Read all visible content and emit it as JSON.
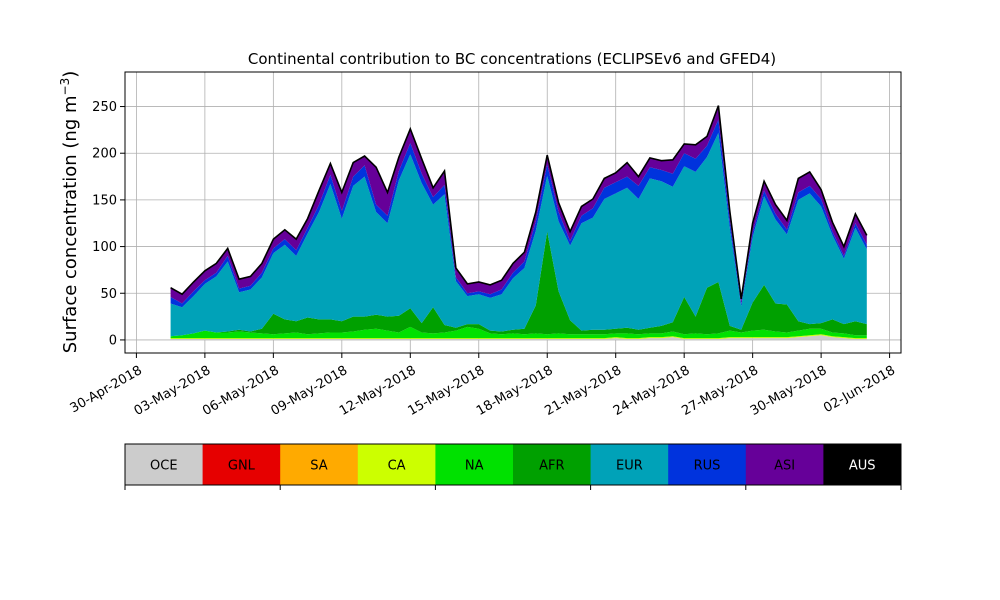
{
  "chart_data": {
    "type": "area",
    "stacked": true,
    "title": "Continental contribution to BC concentrations (ECLIPSEv6 and GFED4)",
    "ylabel": "Surface concentration (ng m",
    "ylabel_superscript": "−3",
    "ylabel_close": ")",
    "xlabel": "",
    "xlim": [
      "2018-04-29T12:00",
      "2018-06-02T12:00"
    ],
    "ylim": [
      -14,
      287
    ],
    "grid": true,
    "x_ticks": [
      "30-Apr-2018",
      "03-May-2018",
      "06-May-2018",
      "09-May-2018",
      "12-May-2018",
      "15-May-2018",
      "18-May-2018",
      "21-May-2018",
      "24-May-2018",
      "27-May-2018",
      "30-May-2018",
      "02-Jun-2018"
    ],
    "y_ticks": [
      "0",
      "50",
      "100",
      "150",
      "200",
      "250"
    ],
    "y_tick_values": [
      0,
      50,
      100,
      150,
      200,
      250
    ],
    "x": [
      "2018-05-01T12:00",
      "2018-05-02T00:00",
      "2018-05-02T12:00",
      "2018-05-03T00:00",
      "2018-05-03T12:00",
      "2018-05-04T00:00",
      "2018-05-04T12:00",
      "2018-05-05T00:00",
      "2018-05-05T12:00",
      "2018-05-06T00:00",
      "2018-05-06T12:00",
      "2018-05-07T00:00",
      "2018-05-07T12:00",
      "2018-05-08T00:00",
      "2018-05-08T12:00",
      "2018-05-09T00:00",
      "2018-05-09T12:00",
      "2018-05-10T00:00",
      "2018-05-10T12:00",
      "2018-05-11T00:00",
      "2018-05-11T12:00",
      "2018-05-12T00:00",
      "2018-05-12T12:00",
      "2018-05-13T00:00",
      "2018-05-13T12:00",
      "2018-05-14T00:00",
      "2018-05-14T12:00",
      "2018-05-15T00:00",
      "2018-05-15T12:00",
      "2018-05-16T00:00",
      "2018-05-16T12:00",
      "2018-05-17T00:00",
      "2018-05-17T12:00",
      "2018-05-18T00:00",
      "2018-05-18T12:00",
      "2018-05-19T00:00",
      "2018-05-19T12:00",
      "2018-05-20T00:00",
      "2018-05-20T12:00",
      "2018-05-21T00:00",
      "2018-05-21T12:00",
      "2018-05-22T00:00",
      "2018-05-22T12:00",
      "2018-05-23T00:00",
      "2018-05-23T12:00",
      "2018-05-24T00:00",
      "2018-05-24T12:00",
      "2018-05-25T00:00",
      "2018-05-25T12:00",
      "2018-05-26T00:00",
      "2018-05-26T12:00",
      "2018-05-27T00:00",
      "2018-05-27T12:00",
      "2018-05-28T00:00",
      "2018-05-28T12:00",
      "2018-05-29T00:00",
      "2018-05-29T12:00",
      "2018-05-30T00:00",
      "2018-05-30T12:00",
      "2018-05-31T00:00",
      "2018-05-31T12:00",
      "2018-06-01T00:00"
    ],
    "series": [
      {
        "name": "OCE",
        "color": "#cccccc",
        "values": [
          1,
          1,
          1,
          1,
          1,
          1,
          1,
          1,
          1,
          1,
          1,
          1,
          1,
          1,
          1,
          1,
          1,
          1,
          1,
          1,
          1,
          1,
          1,
          1,
          1,
          1,
          1,
          1,
          1,
          1,
          1,
          1,
          1,
          1,
          1,
          1,
          1,
          1,
          1,
          2,
          1,
          1,
          2,
          2,
          3,
          1,
          1,
          1,
          1,
          2,
          2,
          2,
          2,
          2,
          2,
          3,
          4,
          5,
          3,
          2,
          1,
          1
        ]
      },
      {
        "name": "GNL",
        "color": "#e60000",
        "values": [
          0,
          0,
          0,
          0,
          0,
          0,
          0,
          0,
          0,
          0,
          0,
          0,
          0,
          0,
          0,
          0,
          0,
          0,
          0,
          0,
          0,
          0,
          0,
          0,
          0,
          0,
          0,
          0,
          0,
          0,
          0,
          0,
          0,
          0,
          0,
          0,
          0,
          0,
          0,
          0,
          0,
          0,
          0,
          0,
          0,
          0,
          0,
          0,
          0,
          0,
          0,
          0,
          0,
          0,
          0,
          0,
          0,
          0,
          0,
          0,
          0,
          0
        ]
      },
      {
        "name": "SA",
        "color": "#ffaa00",
        "values": [
          0,
          0,
          0,
          0,
          0,
          0,
          0,
          0,
          0,
          0,
          0,
          0,
          0,
          0,
          0,
          0,
          0,
          0,
          0,
          0,
          0,
          0,
          0,
          0,
          0,
          0,
          0,
          0,
          0,
          0,
          0,
          0,
          0,
          0,
          0,
          0,
          0,
          0,
          0,
          0,
          0,
          0,
          0,
          0,
          0,
          0,
          0,
          0,
          0,
          0,
          0,
          0,
          0,
          0,
          0,
          0,
          0,
          0,
          0,
          0,
          0,
          0
        ]
      },
      {
        "name": "CA",
        "color": "#ccff00",
        "values": [
          1,
          1,
          1,
          1,
          1,
          1,
          1,
          1,
          1,
          1,
          1,
          1,
          1,
          1,
          1,
          1,
          1,
          1,
          1,
          1,
          1,
          1,
          1,
          1,
          1,
          1,
          1,
          1,
          1,
          1,
          1,
          1,
          1,
          1,
          1,
          1,
          1,
          1,
          1,
          1,
          1,
          1,
          1,
          1,
          1,
          1,
          1,
          1,
          1,
          1,
          1,
          1,
          1,
          1,
          1,
          1,
          1,
          1,
          1,
          1,
          1,
          1
        ]
      },
      {
        "name": "NA",
        "color": "#00e100",
        "values": [
          2,
          3,
          5,
          8,
          6,
          6,
          7,
          6,
          5,
          4,
          5,
          6,
          4,
          5,
          6,
          6,
          7,
          9,
          10,
          8,
          6,
          12,
          6,
          5,
          6,
          8,
          12,
          10,
          5,
          4,
          5,
          4,
          5,
          4,
          5,
          4,
          4,
          4,
          4,
          4,
          5,
          4,
          4,
          4,
          5,
          4,
          5,
          4,
          5,
          7,
          5,
          7,
          8,
          6,
          5,
          6,
          7,
          6,
          4,
          4,
          3,
          3
        ]
      },
      {
        "name": "AFR",
        "color": "#00a000",
        "values": [
          0,
          0,
          0,
          0,
          0,
          1,
          2,
          1,
          5,
          22,
          15,
          12,
          18,
          15,
          14,
          12,
          16,
          14,
          15,
          15,
          18,
          20,
          10,
          28,
          8,
          3,
          3,
          5,
          3,
          3,
          4,
          6,
          30,
          110,
          45,
          15,
          4,
          5,
          5,
          5,
          6,
          5,
          6,
          8,
          10,
          40,
          18,
          50,
          55,
          5,
          3,
          30,
          48,
          30,
          30,
          10,
          5,
          6,
          14,
          10,
          15,
          12
        ]
      },
      {
        "name": "EUR",
        "color": "#00a2b8",
        "values": [
          35,
          30,
          40,
          50,
          60,
          75,
          40,
          45,
          55,
          65,
          80,
          70,
          90,
          115,
          145,
          110,
          140,
          150,
          110,
          100,
          145,
          165,
          150,
          110,
          140,
          50,
          30,
          32,
          35,
          40,
          55,
          65,
          80,
          60,
          75,
          80,
          115,
          120,
          140,
          145,
          150,
          140,
          160,
          155,
          145,
          140,
          155,
          140,
          160,
          105,
          25,
          70,
          95,
          90,
          75,
          130,
          140,
          125,
          90,
          70,
          100,
          80
        ]
      },
      {
        "name": "RUS",
        "color": "#0033dd",
        "values": [
          7,
          4,
          5,
          4,
          4,
          6,
          4,
          4,
          5,
          5,
          6,
          6,
          6,
          8,
          10,
          8,
          10,
          12,
          8,
          8,
          10,
          12,
          10,
          8,
          10,
          4,
          3,
          3,
          4,
          5,
          6,
          7,
          10,
          12,
          10,
          5,
          8,
          10,
          12,
          12,
          12,
          14,
          12,
          12,
          14,
          14,
          14,
          12,
          14,
          8,
          3,
          5,
          6,
          6,
          5,
          8,
          8,
          8,
          4,
          3,
          5,
          5
        ]
      },
      {
        "name": "ASI",
        "color": "#660099",
        "values": [
          10,
          10,
          10,
          10,
          10,
          8,
          10,
          10,
          10,
          10,
          10,
          12,
          10,
          15,
          12,
          20,
          15,
          10,
          40,
          25,
          15,
          15,
          16,
          10,
          15,
          10,
          10,
          10,
          10,
          10,
          10,
          10,
          10,
          10,
          10,
          10,
          10,
          10,
          10,
          10,
          15,
          10,
          10,
          10,
          15,
          10,
          15,
          10,
          15,
          10,
          5,
          10,
          10,
          10,
          10,
          15,
          15,
          10,
          10,
          10,
          10,
          10
        ]
      },
      {
        "name": "AUS",
        "color": "#000000",
        "values": [
          0,
          0,
          0,
          0,
          0,
          0,
          0,
          0,
          0,
          0,
          0,
          0,
          0,
          0,
          0,
          0,
          0,
          0,
          0,
          0,
          0,
          0,
          0,
          0,
          0,
          0,
          0,
          0,
          0,
          0,
          0,
          0,
          0,
          0,
          0,
          0,
          0,
          0,
          0,
          0,
          0,
          0,
          0,
          0,
          0,
          0,
          0,
          0,
          0,
          0,
          0,
          0,
          0,
          0,
          0,
          0,
          0,
          0,
          0,
          0,
          0,
          0
        ]
      }
    ],
    "legend": {
      "placement": "below",
      "entries": [
        {
          "label": "OCE",
          "color": "#cccccc"
        },
        {
          "label": "GNL",
          "color": "#e60000"
        },
        {
          "label": "SA",
          "color": "#ffaa00"
        },
        {
          "label": "CA",
          "color": "#ccff00"
        },
        {
          "label": "NA",
          "color": "#00e100"
        },
        {
          "label": "AFR",
          "color": "#00a000"
        },
        {
          "label": "EUR",
          "color": "#00a2b8"
        },
        {
          "label": "RUS",
          "color": "#0033dd"
        },
        {
          "label": "ASI",
          "color": "#660099"
        },
        {
          "label": "AUS",
          "color": "#000000",
          "text_color": "#ffffff"
        }
      ]
    }
  }
}
